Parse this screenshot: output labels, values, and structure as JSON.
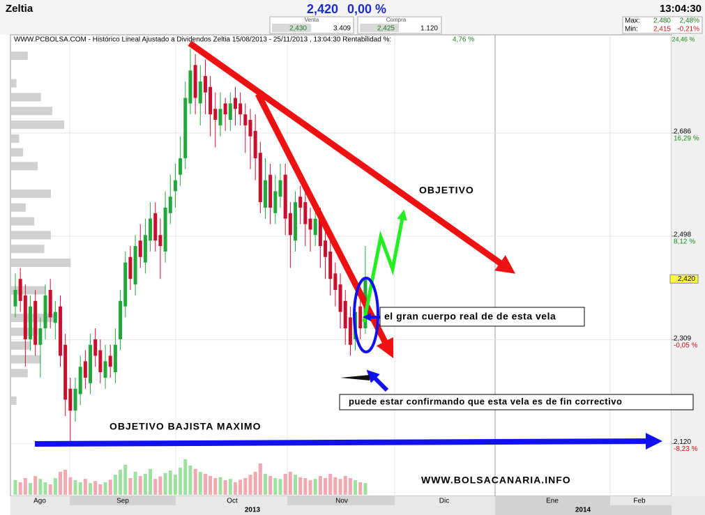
{
  "header": {
    "ticker": "Zeltia",
    "price": "2,420",
    "change": "0,00 %",
    "venta_label": "Venta",
    "venta_price": "2,430",
    "venta_qty": "3.409",
    "compra_label": "Compra",
    "compra_price": "2,425",
    "compra_qty": "1.120",
    "max_label": "Max:",
    "max": "2,480",
    "max_pct": "2,48%",
    "min_label": "Min:",
    "min": "2,415",
    "min_pct": "-0,21%",
    "time": "13:04:30"
  },
  "chart_data": {
    "type": "candlestick",
    "title": "WWW.PCBOLSA.COM - Histórico Lineal  Ajustado a Dividendos Zeltia 15/08/2013 - 25/11/2013 , 13:04:30 Rentabilidad %:",
    "return": "4,76 %",
    "top_pct": "24,46 %",
    "open": [
      2.37,
      2.42,
      2.39,
      2.31,
      2.38,
      2.3,
      2.33,
      2.4,
      2.34,
      2.37,
      2.3,
      2.22,
      2.18,
      2.21,
      2.27,
      2.23,
      2.31,
      2.29,
      2.24,
      2.28,
      2.25,
      2.31,
      2.37,
      2.46,
      2.41,
      2.49,
      2.45,
      2.49,
      2.54,
      2.5,
      2.47,
      2.54,
      2.58,
      2.61,
      2.64,
      2.74,
      2.81,
      2.74,
      2.79,
      2.77,
      2.73,
      2.7,
      2.74,
      2.71,
      2.75,
      2.74,
      2.72,
      2.71,
      2.69,
      2.65,
      2.55,
      2.61,
      2.54,
      2.57,
      2.61,
      2.54,
      2.49,
      2.57,
      2.56,
      2.53,
      2.5,
      2.54,
      2.49,
      2.47,
      2.43,
      2.41,
      2.38,
      2.35,
      2.31,
      2.37,
      2.33
    ],
    "high": [
      2.43,
      2.44,
      2.41,
      2.39,
      2.4,
      2.35,
      2.41,
      2.42,
      2.38,
      2.39,
      2.32,
      2.24,
      2.24,
      2.28,
      2.29,
      2.32,
      2.33,
      2.31,
      2.3,
      2.3,
      2.33,
      2.4,
      2.47,
      2.48,
      2.5,
      2.52,
      2.53,
      2.56,
      2.56,
      2.53,
      2.58,
      2.61,
      2.63,
      2.68,
      2.78,
      2.84,
      2.83,
      2.81,
      2.82,
      2.79,
      2.76,
      2.76,
      2.75,
      2.76,
      2.77,
      2.76,
      2.74,
      2.73,
      2.72,
      2.67,
      2.64,
      2.63,
      2.61,
      2.63,
      2.63,
      2.56,
      2.58,
      2.59,
      2.58,
      2.55,
      2.56,
      2.55,
      2.51,
      2.49,
      2.45,
      2.43,
      2.4,
      2.37,
      2.39,
      2.4,
      2.48
    ],
    "low": [
      2.35,
      2.36,
      2.26,
      2.29,
      2.28,
      2.24,
      2.31,
      2.33,
      2.31,
      2.26,
      2.17,
      2.12,
      2.16,
      2.19,
      2.22,
      2.21,
      2.26,
      2.23,
      2.22,
      2.24,
      2.23,
      2.29,
      2.35,
      2.4,
      2.39,
      2.44,
      2.43,
      2.47,
      2.47,
      2.42,
      2.45,
      2.52,
      2.55,
      2.59,
      2.62,
      2.72,
      2.72,
      2.7,
      2.72,
      2.68,
      2.66,
      2.68,
      2.69,
      2.69,
      2.7,
      2.7,
      2.65,
      2.62,
      2.6,
      2.54,
      2.53,
      2.52,
      2.52,
      2.55,
      2.5,
      2.44,
      2.47,
      2.52,
      2.48,
      2.47,
      2.48,
      2.44,
      2.42,
      2.39,
      2.37,
      2.33,
      2.3,
      2.28,
      2.29,
      2.31,
      2.32
    ],
    "close": [
      2.4,
      2.38,
      2.31,
      2.37,
      2.3,
      2.33,
      2.39,
      2.35,
      2.36,
      2.28,
      2.2,
      2.18,
      2.22,
      2.26,
      2.24,
      2.3,
      2.28,
      2.25,
      2.27,
      2.26,
      2.3,
      2.38,
      2.45,
      2.42,
      2.48,
      2.46,
      2.5,
      2.53,
      2.49,
      2.48,
      2.55,
      2.57,
      2.6,
      2.64,
      2.75,
      2.8,
      2.75,
      2.78,
      2.76,
      2.72,
      2.71,
      2.73,
      2.72,
      2.74,
      2.73,
      2.72,
      2.7,
      2.68,
      2.64,
      2.56,
      2.6,
      2.55,
      2.58,
      2.6,
      2.53,
      2.5,
      2.56,
      2.55,
      2.52,
      2.51,
      2.53,
      2.48,
      2.46,
      2.42,
      2.4,
      2.36,
      2.33,
      2.3,
      2.36,
      2.33,
      2.42
    ],
    "up_color": "#22a83a",
    "down_color": "#c8102e",
    "volume": [
      35,
      30,
      40,
      28,
      45,
      38,
      30,
      25,
      40,
      55,
      60,
      42,
      35,
      30,
      38,
      28,
      33,
      25,
      30,
      36,
      48,
      60,
      72,
      40,
      55,
      45,
      50,
      62,
      38,
      44,
      52,
      58,
      48,
      65,
      85,
      70,
      62,
      55,
      50,
      45,
      40,
      42,
      35,
      38,
      30,
      36,
      40,
      48,
      55,
      75,
      50,
      45,
      40,
      38,
      50,
      55,
      48,
      42,
      40,
      35,
      38,
      45,
      40,
      50,
      42,
      38,
      45,
      40,
      35,
      30,
      28
    ],
    "vlim": [
      0,
      100
    ],
    "vol_up_color": "#9ee0a0",
    "vol_down_color": "#f2a8b0",
    "profile": [
      25,
      0,
      8,
      45,
      62,
      80,
      12,
      18,
      40,
      0,
      60,
      22,
      35,
      60,
      50,
      90,
      0,
      52,
      0,
      67,
      40,
      30,
      45,
      25,
      0,
      8
    ],
    "profile_color": "#d0d0d0",
    "ylim": [
      2.024,
      2.865
    ],
    "yticks": [
      {
        "value": 2.686,
        "label": "2,686"
      },
      {
        "value": 2.498,
        "label": "2,498"
      },
      {
        "value": 2.309,
        "label": "2,309"
      },
      {
        "value": 2.12,
        "label": "2,120"
      }
    ],
    "pct_ticks": [
      {
        "value": 2.686,
        "label": "16,29 %"
      },
      {
        "value": 2.498,
        "label": "8,12 %"
      },
      {
        "value": 2.309,
        "label": "-0,05 %"
      },
      {
        "value": 2.12,
        "label": "-8,23 %"
      }
    ],
    "last": {
      "value": 2.42,
      "label": "2,420"
    },
    "months": [
      "Ago",
      "Sep",
      "Oct",
      "Nov",
      "Dic",
      "Ene",
      "Feb"
    ],
    "years": [
      "2013",
      "2014"
    ],
    "annotations": [
      "OBJETIVO",
      "el gran cuerpo real de de esta vela",
      "puede estar confirmando que esta vela es de fin correctivo",
      "OBJETIVO BAJISTA MAXIMO",
      "WWW.BOLSACANARIA.INFO"
    ]
  }
}
